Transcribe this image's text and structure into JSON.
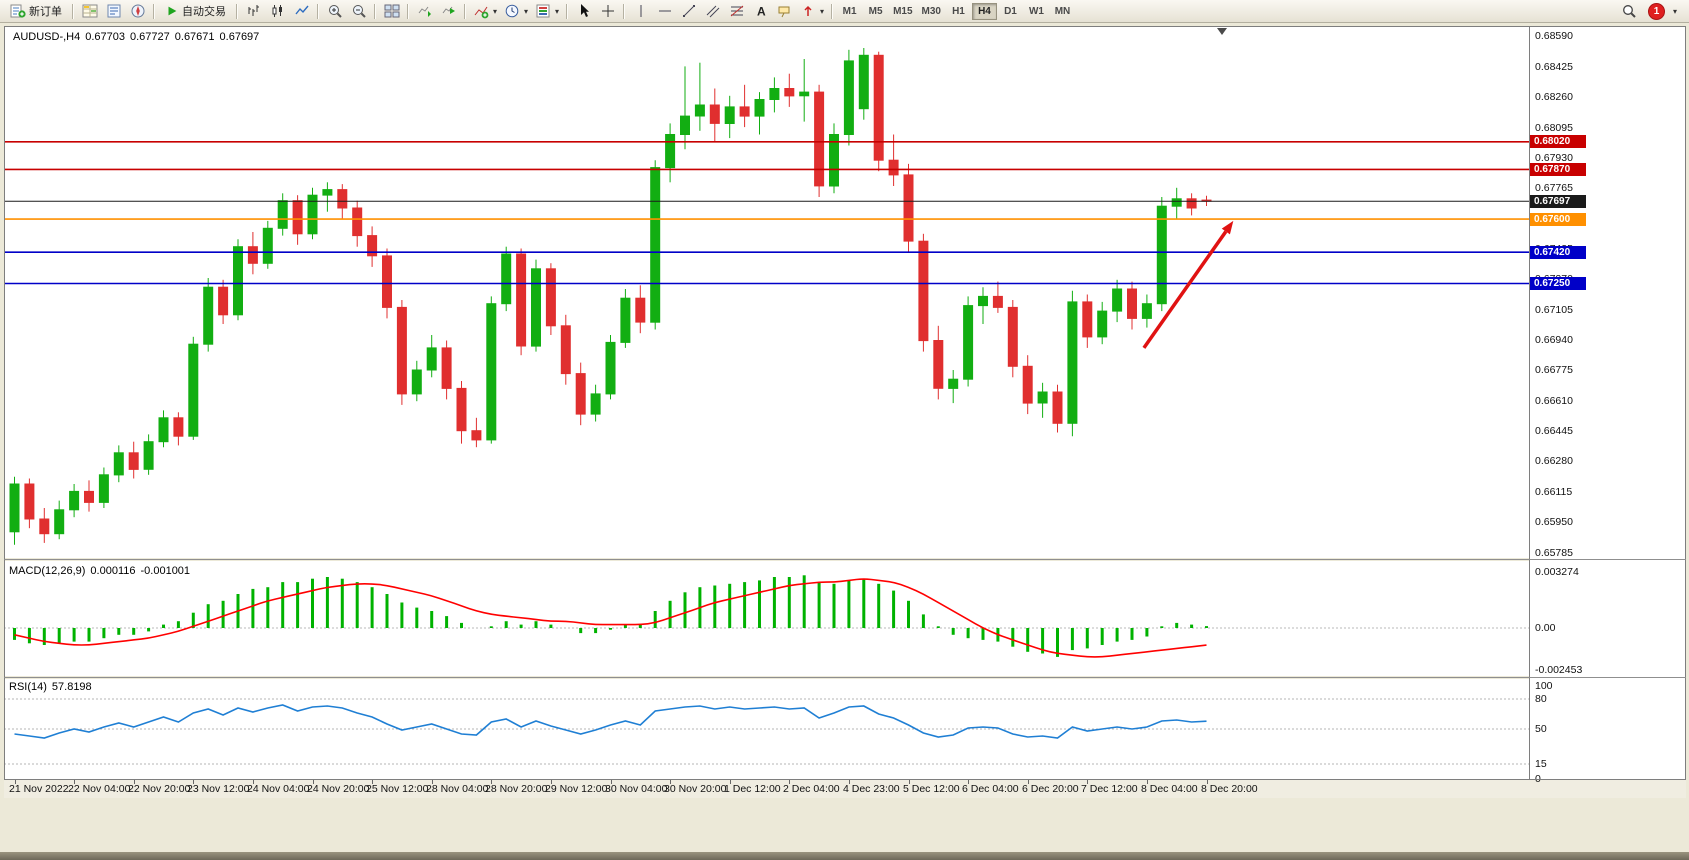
{
  "toolbar": {
    "new_order_label": "新订单",
    "autotrading_label": "自动交易",
    "notification_count": "1",
    "timeframes": [
      "M1",
      "M5",
      "M15",
      "M30",
      "H1",
      "H4",
      "D1",
      "W1",
      "MN"
    ],
    "active_timeframe": "H4",
    "icons": [
      "new-order-icon",
      "market-watch-icon",
      "data-window-icon",
      "navigator-icon",
      "autotrading-icon",
      "bar-chart-icon",
      "candlestick-chart-icon",
      "line-chart-icon",
      "zoom-in-icon",
      "zoom-out-icon",
      "tile-windows-icon",
      "auto-scroll-icon",
      "chart-shift-icon",
      "indicators-icon",
      "periods-icon",
      "templates-icon",
      "cursor-icon",
      "crosshair-icon",
      "vertical-line-icon",
      "horizontal-line-icon",
      "trendline-icon",
      "channel-icon",
      "fibonacci-icon",
      "text-icon",
      "text-label-icon",
      "arrows-icon",
      "search-icon",
      "dropdown-arrow-icon"
    ]
  },
  "chart": {
    "symbol_period": "AUDUSD-,H4",
    "ohlc": {
      "open": "0.67703",
      "high": "0.67727",
      "low": "0.67671",
      "close": "0.67697"
    }
  },
  "chart_data": {
    "type": "candlestick",
    "symbol": "AUDUSD",
    "timeframe": "H4",
    "colors": {
      "up": "#12ae12",
      "down": "#e02f2f",
      "macd_histogram": "#00b200",
      "macd_signal": "#ff0000",
      "rsi_line": "#1f7fd4",
      "arrow": "#e01212"
    },
    "y_axis": {
      "min": 0.65758,
      "max": 0.68644,
      "tick_labels": [
        "0.68590",
        "0.68425",
        "0.68260",
        "0.68095",
        "0.67930",
        "0.67765",
        "0.67600",
        "0.67435",
        "0.67270",
        "0.67105",
        "0.66940",
        "0.66775",
        "0.66610",
        "0.66445",
        "0.66280",
        "0.66115",
        "0.65950",
        "0.65785"
      ]
    },
    "x_labels": [
      "21 Nov 2022",
      "22 Nov 04:00",
      "22 Nov 20:00",
      "23 Nov 12:00",
      "24 Nov 04:00",
      "24 Nov 20:00",
      "25 Nov 12:00",
      "28 Nov 04:00",
      "28 Nov 20:00",
      "29 Nov 12:00",
      "30 Nov 04:00",
      "30 Nov 20:00",
      "1 Dec 12:00",
      "2 Dec 04:00",
      "4 Dec 23:00",
      "5 Dec 12:00",
      "6 Dec 04:00",
      "6 Dec 20:00",
      "7 Dec 12:00",
      "8 Dec 04:00",
      "8 Dec 20:00"
    ],
    "label_every_n_bars": 4,
    "candles": [
      [
        0.659,
        0.662,
        0.6583,
        0.6616
      ],
      [
        0.6616,
        0.6619,
        0.6592,
        0.6597
      ],
      [
        0.6597,
        0.6603,
        0.6584,
        0.6589
      ],
      [
        0.6589,
        0.6607,
        0.6586,
        0.6602
      ],
      [
        0.6602,
        0.6616,
        0.6598,
        0.6612
      ],
      [
        0.6612,
        0.6618,
        0.6601,
        0.6606
      ],
      [
        0.6606,
        0.6625,
        0.6603,
        0.6621
      ],
      [
        0.6621,
        0.6637,
        0.6617,
        0.6633
      ],
      [
        0.6633,
        0.6639,
        0.6619,
        0.6624
      ],
      [
        0.6624,
        0.6643,
        0.6621,
        0.6639
      ],
      [
        0.6639,
        0.6656,
        0.6636,
        0.6652
      ],
      [
        0.6652,
        0.6655,
        0.6637,
        0.6642
      ],
      [
        0.6642,
        0.6696,
        0.664,
        0.6692
      ],
      [
        0.6692,
        0.6728,
        0.6688,
        0.6723
      ],
      [
        0.6723,
        0.6727,
        0.6703,
        0.6708
      ],
      [
        0.6708,
        0.6749,
        0.6705,
        0.6745
      ],
      [
        0.6745,
        0.6753,
        0.673,
        0.6736
      ],
      [
        0.6736,
        0.6759,
        0.6733,
        0.6755
      ],
      [
        0.6755,
        0.6774,
        0.6751,
        0.677
      ],
      [
        0.677,
        0.6773,
        0.6746,
        0.6752
      ],
      [
        0.6752,
        0.6777,
        0.6749,
        0.6773
      ],
      [
        0.6773,
        0.678,
        0.6764,
        0.6776
      ],
      [
        0.6776,
        0.6779,
        0.676,
        0.6766
      ],
      [
        0.6766,
        0.677,
        0.6745,
        0.6751
      ],
      [
        0.6751,
        0.6756,
        0.6734,
        0.674
      ],
      [
        0.674,
        0.6744,
        0.6706,
        0.6712
      ],
      [
        0.6712,
        0.6716,
        0.6659,
        0.6665
      ],
      [
        0.6665,
        0.6683,
        0.6661,
        0.6678
      ],
      [
        0.6678,
        0.6697,
        0.6674,
        0.669
      ],
      [
        0.669,
        0.6694,
        0.6662,
        0.6668
      ],
      [
        0.6668,
        0.6672,
        0.6638,
        0.6645
      ],
      [
        0.6645,
        0.6652,
        0.6636,
        0.664
      ],
      [
        0.664,
        0.6718,
        0.6638,
        0.6714
      ],
      [
        0.6714,
        0.6745,
        0.671,
        0.6741
      ],
      [
        0.6741,
        0.6744,
        0.6686,
        0.6691
      ],
      [
        0.6691,
        0.6738,
        0.6688,
        0.6733
      ],
      [
        0.6733,
        0.6736,
        0.6697,
        0.6702
      ],
      [
        0.6702,
        0.6708,
        0.667,
        0.6676
      ],
      [
        0.6676,
        0.6682,
        0.6648,
        0.6654
      ],
      [
        0.6654,
        0.667,
        0.665,
        0.6665
      ],
      [
        0.6665,
        0.6697,
        0.6662,
        0.6693
      ],
      [
        0.6693,
        0.6722,
        0.669,
        0.6717
      ],
      [
        0.6717,
        0.6724,
        0.6698,
        0.6704
      ],
      [
        0.6704,
        0.6792,
        0.67,
        0.6788
      ],
      [
        0.6788,
        0.6812,
        0.678,
        0.6806
      ],
      [
        0.6806,
        0.6843,
        0.6798,
        0.6816
      ],
      [
        0.6816,
        0.6845,
        0.6808,
        0.6822
      ],
      [
        0.6822,
        0.6831,
        0.6802,
        0.6812
      ],
      [
        0.6812,
        0.6827,
        0.6804,
        0.6821
      ],
      [
        0.6821,
        0.6833,
        0.681,
        0.6816
      ],
      [
        0.6816,
        0.6829,
        0.6806,
        0.6825
      ],
      [
        0.6825,
        0.6837,
        0.6818,
        0.6831
      ],
      [
        0.6831,
        0.6839,
        0.6821,
        0.6827
      ],
      [
        0.6827,
        0.6847,
        0.6813,
        0.6829
      ],
      [
        0.6829,
        0.6833,
        0.6772,
        0.6778
      ],
      [
        0.6778,
        0.6812,
        0.6774,
        0.6806
      ],
      [
        0.6806,
        0.6852,
        0.68,
        0.6846
      ],
      [
        0.682,
        0.6853,
        0.6814,
        0.6849
      ],
      [
        0.6849,
        0.6851,
        0.6786,
        0.6792
      ],
      [
        0.6792,
        0.6806,
        0.6778,
        0.6784
      ],
      [
        0.6784,
        0.679,
        0.6742,
        0.6748
      ],
      [
        0.6748,
        0.6752,
        0.6688,
        0.6694
      ],
      [
        0.6694,
        0.6702,
        0.6662,
        0.6668
      ],
      [
        0.6668,
        0.6678,
        0.666,
        0.6673
      ],
      [
        0.6673,
        0.6718,
        0.6669,
        0.6713
      ],
      [
        0.6713,
        0.6723,
        0.6703,
        0.6718
      ],
      [
        0.6718,
        0.6726,
        0.6709,
        0.6712
      ],
      [
        0.6712,
        0.6716,
        0.6674,
        0.668
      ],
      [
        0.668,
        0.6686,
        0.6654,
        0.666
      ],
      [
        0.666,
        0.6671,
        0.6652,
        0.6666
      ],
      [
        0.6666,
        0.667,
        0.6644,
        0.6649
      ],
      [
        0.6649,
        0.6721,
        0.6642,
        0.6715
      ],
      [
        0.6715,
        0.6719,
        0.669,
        0.6696
      ],
      [
        0.6696,
        0.6715,
        0.6692,
        0.671
      ],
      [
        0.671,
        0.6727,
        0.6704,
        0.6722
      ],
      [
        0.6722,
        0.6726,
        0.67,
        0.6706
      ],
      [
        0.6706,
        0.6719,
        0.6701,
        0.6714
      ],
      [
        0.6714,
        0.6772,
        0.671,
        0.6767
      ],
      [
        0.6767,
        0.6777,
        0.676,
        0.6771
      ],
      [
        0.6771,
        0.6774,
        0.6762,
        0.6766
      ],
      [
        0.67703,
        0.67727,
        0.67671,
        0.67697
      ]
    ],
    "hlines": [
      {
        "price": 0.6802,
        "label": "0.68020",
        "color": "#c80000",
        "current": false
      },
      {
        "price": 0.6787,
        "label": "0.67870",
        "color": "#c80000",
        "current": false
      },
      {
        "price": 0.67697,
        "label": "0.67697",
        "color": "#1a1a1a",
        "current": true
      },
      {
        "price": 0.676,
        "label": "0.67600",
        "color": "#ff9000",
        "current": false
      },
      {
        "price": 0.6742,
        "label": "0.67420",
        "color": "#0000c8",
        "current": false
      },
      {
        "price": 0.6725,
        "label": "0.67250",
        "color": "#0000c8",
        "current": false
      }
    ],
    "arrow": {
      "from_bar": 75.8,
      "from_price": 0.669,
      "to_bar": 81.8,
      "to_price": 0.6759
    },
    "macd": {
      "label": "MACD(12,26,9)",
      "value_main": "0.000116",
      "value_signal": "-0.001001",
      "ylim": [
        -0.00282,
        0.00394
      ],
      "y_labels": [
        {
          "text": "0.003274",
          "value": 0.003274
        },
        {
          "text": "0.00",
          "value": 0
        },
        {
          "text": "-0.002453",
          "value": -0.002453
        }
      ],
      "histogram": [
        -0.0007,
        -0.0009,
        -0.001,
        -0.0009,
        -0.0008,
        -0.0008,
        -0.0006,
        -0.0004,
        -0.0004,
        -0.0002,
        0.0002,
        0.0004,
        0.0009,
        0.0014,
        0.0016,
        0.002,
        0.0023,
        0.0024,
        0.0027,
        0.0027,
        0.0029,
        0.003,
        0.0029,
        0.0027,
        0.0024,
        0.002,
        0.0015,
        0.0012,
        0.001,
        0.0007,
        0.0003,
        0.0,
        0.0001,
        0.0004,
        0.0002,
        0.0004,
        0.0002,
        0.0,
        -0.0003,
        -0.0003,
        -0.0001,
        0.0002,
        0.0002,
        0.001,
        0.0016,
        0.0021,
        0.0024,
        0.0025,
        0.0026,
        0.0027,
        0.0028,
        0.003,
        0.003,
        0.0031,
        0.0027,
        0.0026,
        0.0028,
        0.0029,
        0.0026,
        0.0022,
        0.0016,
        0.0008,
        0.0001,
        -0.0004,
        -0.0006,
        -0.0007,
        -0.0008,
        -0.0011,
        -0.0014,
        -0.0015,
        -0.0017,
        -0.0013,
        -0.0012,
        -0.001,
        -0.0008,
        -0.0007,
        -0.0005,
        0.0001,
        0.0003,
        0.0002,
        0.000116
      ],
      "signal": [
        -0.0004,
        -0.0006,
        -0.0008,
        -0.0009,
        -0.001,
        -0.001,
        -0.0009,
        -0.0008,
        -0.0007,
        -0.0006,
        -0.0004,
        -0.0002,
        0.0001,
        0.0004,
        0.0007,
        0.001,
        0.0013,
        0.0016,
        0.0018,
        0.002,
        0.0022,
        0.0024,
        0.0025,
        0.0026,
        0.0026,
        0.0025,
        0.0023,
        0.0021,
        0.0019,
        0.0016,
        0.0013,
        0.001,
        0.0008,
        0.0007,
        0.0006,
        0.0005,
        0.0004,
        0.0004,
        0.0003,
        0.0002,
        0.0002,
        0.0002,
        0.0002,
        0.0003,
        0.0006,
        0.0009,
        0.0012,
        0.0015,
        0.0017,
        0.0019,
        0.0021,
        0.0023,
        0.0025,
        0.0026,
        0.0027,
        0.0027,
        0.0028,
        0.0029,
        0.0028,
        0.0027,
        0.0024,
        0.002,
        0.0015,
        0.001,
        0.0005,
        0.0,
        -0.0004,
        -0.0007,
        -0.001,
        -0.0013,
        -0.0015,
        -0.0016,
        -0.0017,
        -0.0017,
        -0.0016,
        -0.0015,
        -0.0014,
        -0.0013,
        -0.0012,
        -0.0011,
        -0.001001
      ]
    },
    "rsi": {
      "label": "RSI(14)",
      "value_text": "57.8198",
      "ylim": [
        0,
        100
      ],
      "levels": [
        80,
        50,
        15
      ],
      "y_labels": [
        {
          "text": "100",
          "value": 100
        },
        {
          "text": "80",
          "value": 80
        },
        {
          "text": "50",
          "value": 50
        },
        {
          "text": "15",
          "value": 15
        },
        {
          "text": "0",
          "value": 0
        }
      ],
      "values": [
        45,
        43,
        41,
        46,
        50,
        47,
        52,
        56,
        52,
        57,
        62,
        57,
        66,
        70,
        64,
        71,
        67,
        71,
        74,
        68,
        72,
        73,
        71,
        66,
        62,
        55,
        49,
        52,
        55,
        50,
        45,
        44,
        57,
        60,
        52,
        58,
        53,
        49,
        45,
        49,
        54,
        58,
        54,
        68,
        70,
        72,
        73,
        70,
        72,
        70,
        71,
        72,
        70,
        71,
        61,
        66,
        72,
        73,
        65,
        61,
        54,
        46,
        42,
        44,
        51,
        52,
        51,
        45,
        42,
        43,
        41,
        52,
        48,
        50,
        52,
        50,
        52,
        58,
        59,
        57,
        57.8
      ]
    }
  }
}
